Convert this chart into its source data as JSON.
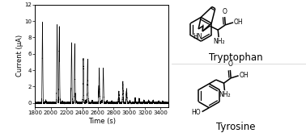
{
  "xlim": [
    1800,
    3500
  ],
  "ylim": [
    -0.5,
    12
  ],
  "yticks": [
    0,
    2,
    4,
    6,
    8,
    10,
    12
  ],
  "xticks": [
    1800,
    2000,
    2200,
    2400,
    2600,
    2800,
    3000,
    3200,
    3400
  ],
  "xlabel": "Time (s)",
  "ylabel": "Current (μA)",
  "spikes": [
    [
      1893,
      9.8
    ],
    [
      1935,
      0.3
    ],
    [
      2080,
      9.5
    ],
    [
      2108,
      9.3
    ],
    [
      2145,
      0.2
    ],
    [
      2265,
      7.3
    ],
    [
      2305,
      7.2
    ],
    [
      2328,
      0.2
    ],
    [
      2415,
      5.4
    ],
    [
      2448,
      0.3
    ],
    [
      2470,
      5.3
    ],
    [
      2528,
      0.3
    ],
    [
      2618,
      4.2
    ],
    [
      2648,
      0.25
    ],
    [
      2670,
      4.2
    ],
    [
      2718,
      0.25
    ],
    [
      2778,
      0.2
    ],
    [
      2868,
      1.4
    ],
    [
      2920,
      2.6
    ],
    [
      2968,
      1.7
    ],
    [
      3010,
      0.25
    ],
    [
      3078,
      0.6
    ],
    [
      3128,
      0.5
    ],
    [
      3188,
      0.3
    ],
    [
      3248,
      0.3
    ],
    [
      3308,
      0.3
    ],
    [
      3378,
      0.2
    ],
    [
      3428,
      0.2
    ]
  ],
  "spike_sigma": 4,
  "noise_std": 0.07,
  "tryptophan_label": "Tryptophan",
  "tyrosine_label": "Tyrosine",
  "fig_bg": "white",
  "line_color": "black",
  "line_width": 0.45,
  "struct_lw": 1.1
}
